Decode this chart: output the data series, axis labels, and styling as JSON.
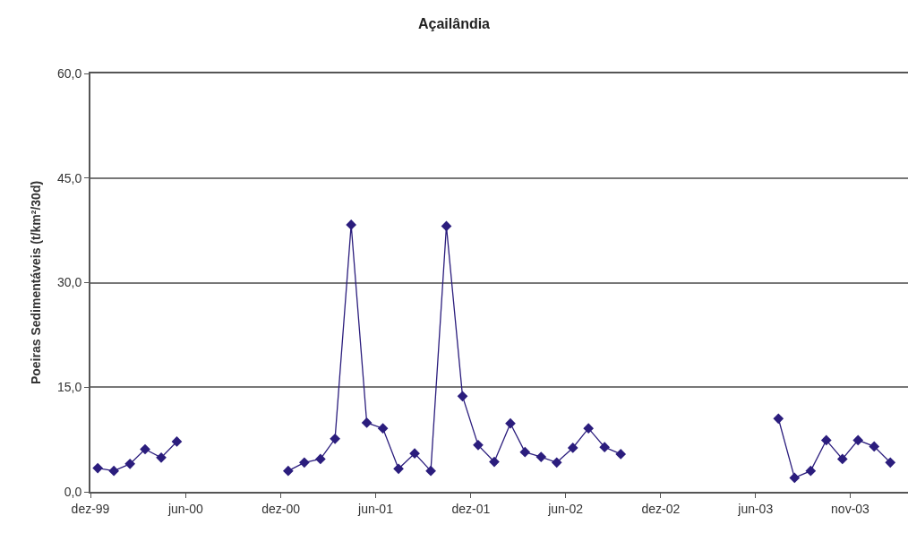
{
  "chart_data": {
    "type": "line",
    "title": "Açailândia",
    "ylabel": "Poeiras Sedimentáveis (t/km²/30d)",
    "x": [
      "1999-12-15",
      "2000-01-15",
      "2000-02-15",
      "2000-03-15",
      "2000-04-15",
      "2000-05-15",
      "2000-06-15",
      "2000-12-15",
      "2001-01-15",
      "2001-02-15",
      "2001-03-15",
      "2001-04-15",
      "2001-05-15",
      "2001-06-15",
      "2001-07-15",
      "2001-08-15",
      "2001-09-15",
      "2001-10-15",
      "2001-11-15",
      "2001-12-15",
      "2002-01-15",
      "2002-02-15",
      "2002-03-15",
      "2002-04-15",
      "2002-05-15",
      "2002-06-15",
      "2002-07-15",
      "2002-08-15",
      "2002-09-15",
      "2002-10-15",
      "2003-07-15",
      "2003-08-15",
      "2003-09-15",
      "2003-10-15",
      "2003-11-15",
      "2003-12-15",
      "2004-01-15",
      "2004-02-15"
    ],
    "series": [
      {
        "color": "#2b1d7d",
        "values": [
          3.4,
          3.0,
          4.0,
          6.1,
          4.9,
          7.2,
          null,
          3.0,
          4.2,
          4.7,
          7.6,
          38.3,
          9.9,
          9.1,
          3.3,
          5.5,
          3.0,
          38.1,
          13.7,
          6.7,
          4.3,
          9.8,
          5.7,
          5.0,
          4.2,
          6.3,
          9.1,
          6.4,
          5.4,
          null,
          10.5,
          2.0,
          3.0,
          7.4,
          4.7,
          7.4,
          6.5,
          4.2
        ]
      }
    ],
    "xlim": [
      "1999-12-01",
      "2004-03-20"
    ],
    "xticks": [
      {
        "value": "1999-12-01",
        "label": "dez-99"
      },
      {
        "value": "2000-06-01",
        "label": "jun-00"
      },
      {
        "value": "2000-12-01",
        "label": "dez-00"
      },
      {
        "value": "2001-06-01",
        "label": "jun-01"
      },
      {
        "value": "2001-12-01",
        "label": "dez-01"
      },
      {
        "value": "2002-06-01",
        "label": "jun-02"
      },
      {
        "value": "2002-12-01",
        "label": "dez-02"
      },
      {
        "value": "2003-06-01",
        "label": "jun-03"
      },
      {
        "value": "2003-11-30",
        "label": "nov-03"
      }
    ],
    "ylim": [
      0,
      60
    ],
    "yticks": [
      {
        "value": 0,
        "label": "0,0"
      },
      {
        "value": 15,
        "label": "15,0"
      },
      {
        "value": 30,
        "label": "30,0"
      },
      {
        "value": 45,
        "label": "45,0"
      },
      {
        "value": 60,
        "label": "60,0"
      }
    ],
    "grid": "y",
    "marker": "diamond",
    "line_style": "solid"
  }
}
